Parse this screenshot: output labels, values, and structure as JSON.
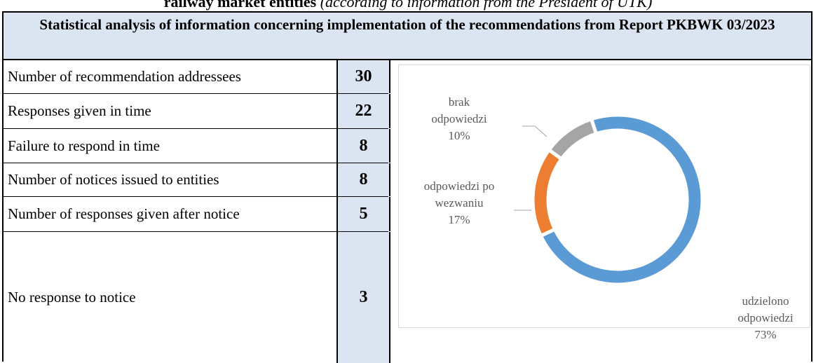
{
  "caption": {
    "title": "railway market entities",
    "note": "(according to information from the President of UTK)"
  },
  "table": {
    "header": "Statistical analysis of information concerning implementation of the recommendations from Report PKBWK 03/2023",
    "rows": [
      [
        "Number of recommendation addressees",
        30
      ],
      [
        "Responses given in time",
        22
      ],
      [
        "Failure to respond in time",
        8
      ],
      [
        "Number of notices issued to entities",
        8
      ],
      [
        "Number of responses given after notice",
        5
      ],
      [
        "No response to notice",
        3
      ]
    ]
  },
  "chart_data": {
    "type": "donut",
    "categories": [
      "udzielono odpowiedzi",
      "odpowiedzi po wezwaniu",
      "brak odpowiedzi"
    ],
    "values": [
      73,
      17,
      10
    ],
    "value_labels": [
      "73%",
      "17%",
      "10%"
    ],
    "colors": [
      "#5b9bd5",
      "#ed7d31",
      "#a5a5a5"
    ]
  }
}
